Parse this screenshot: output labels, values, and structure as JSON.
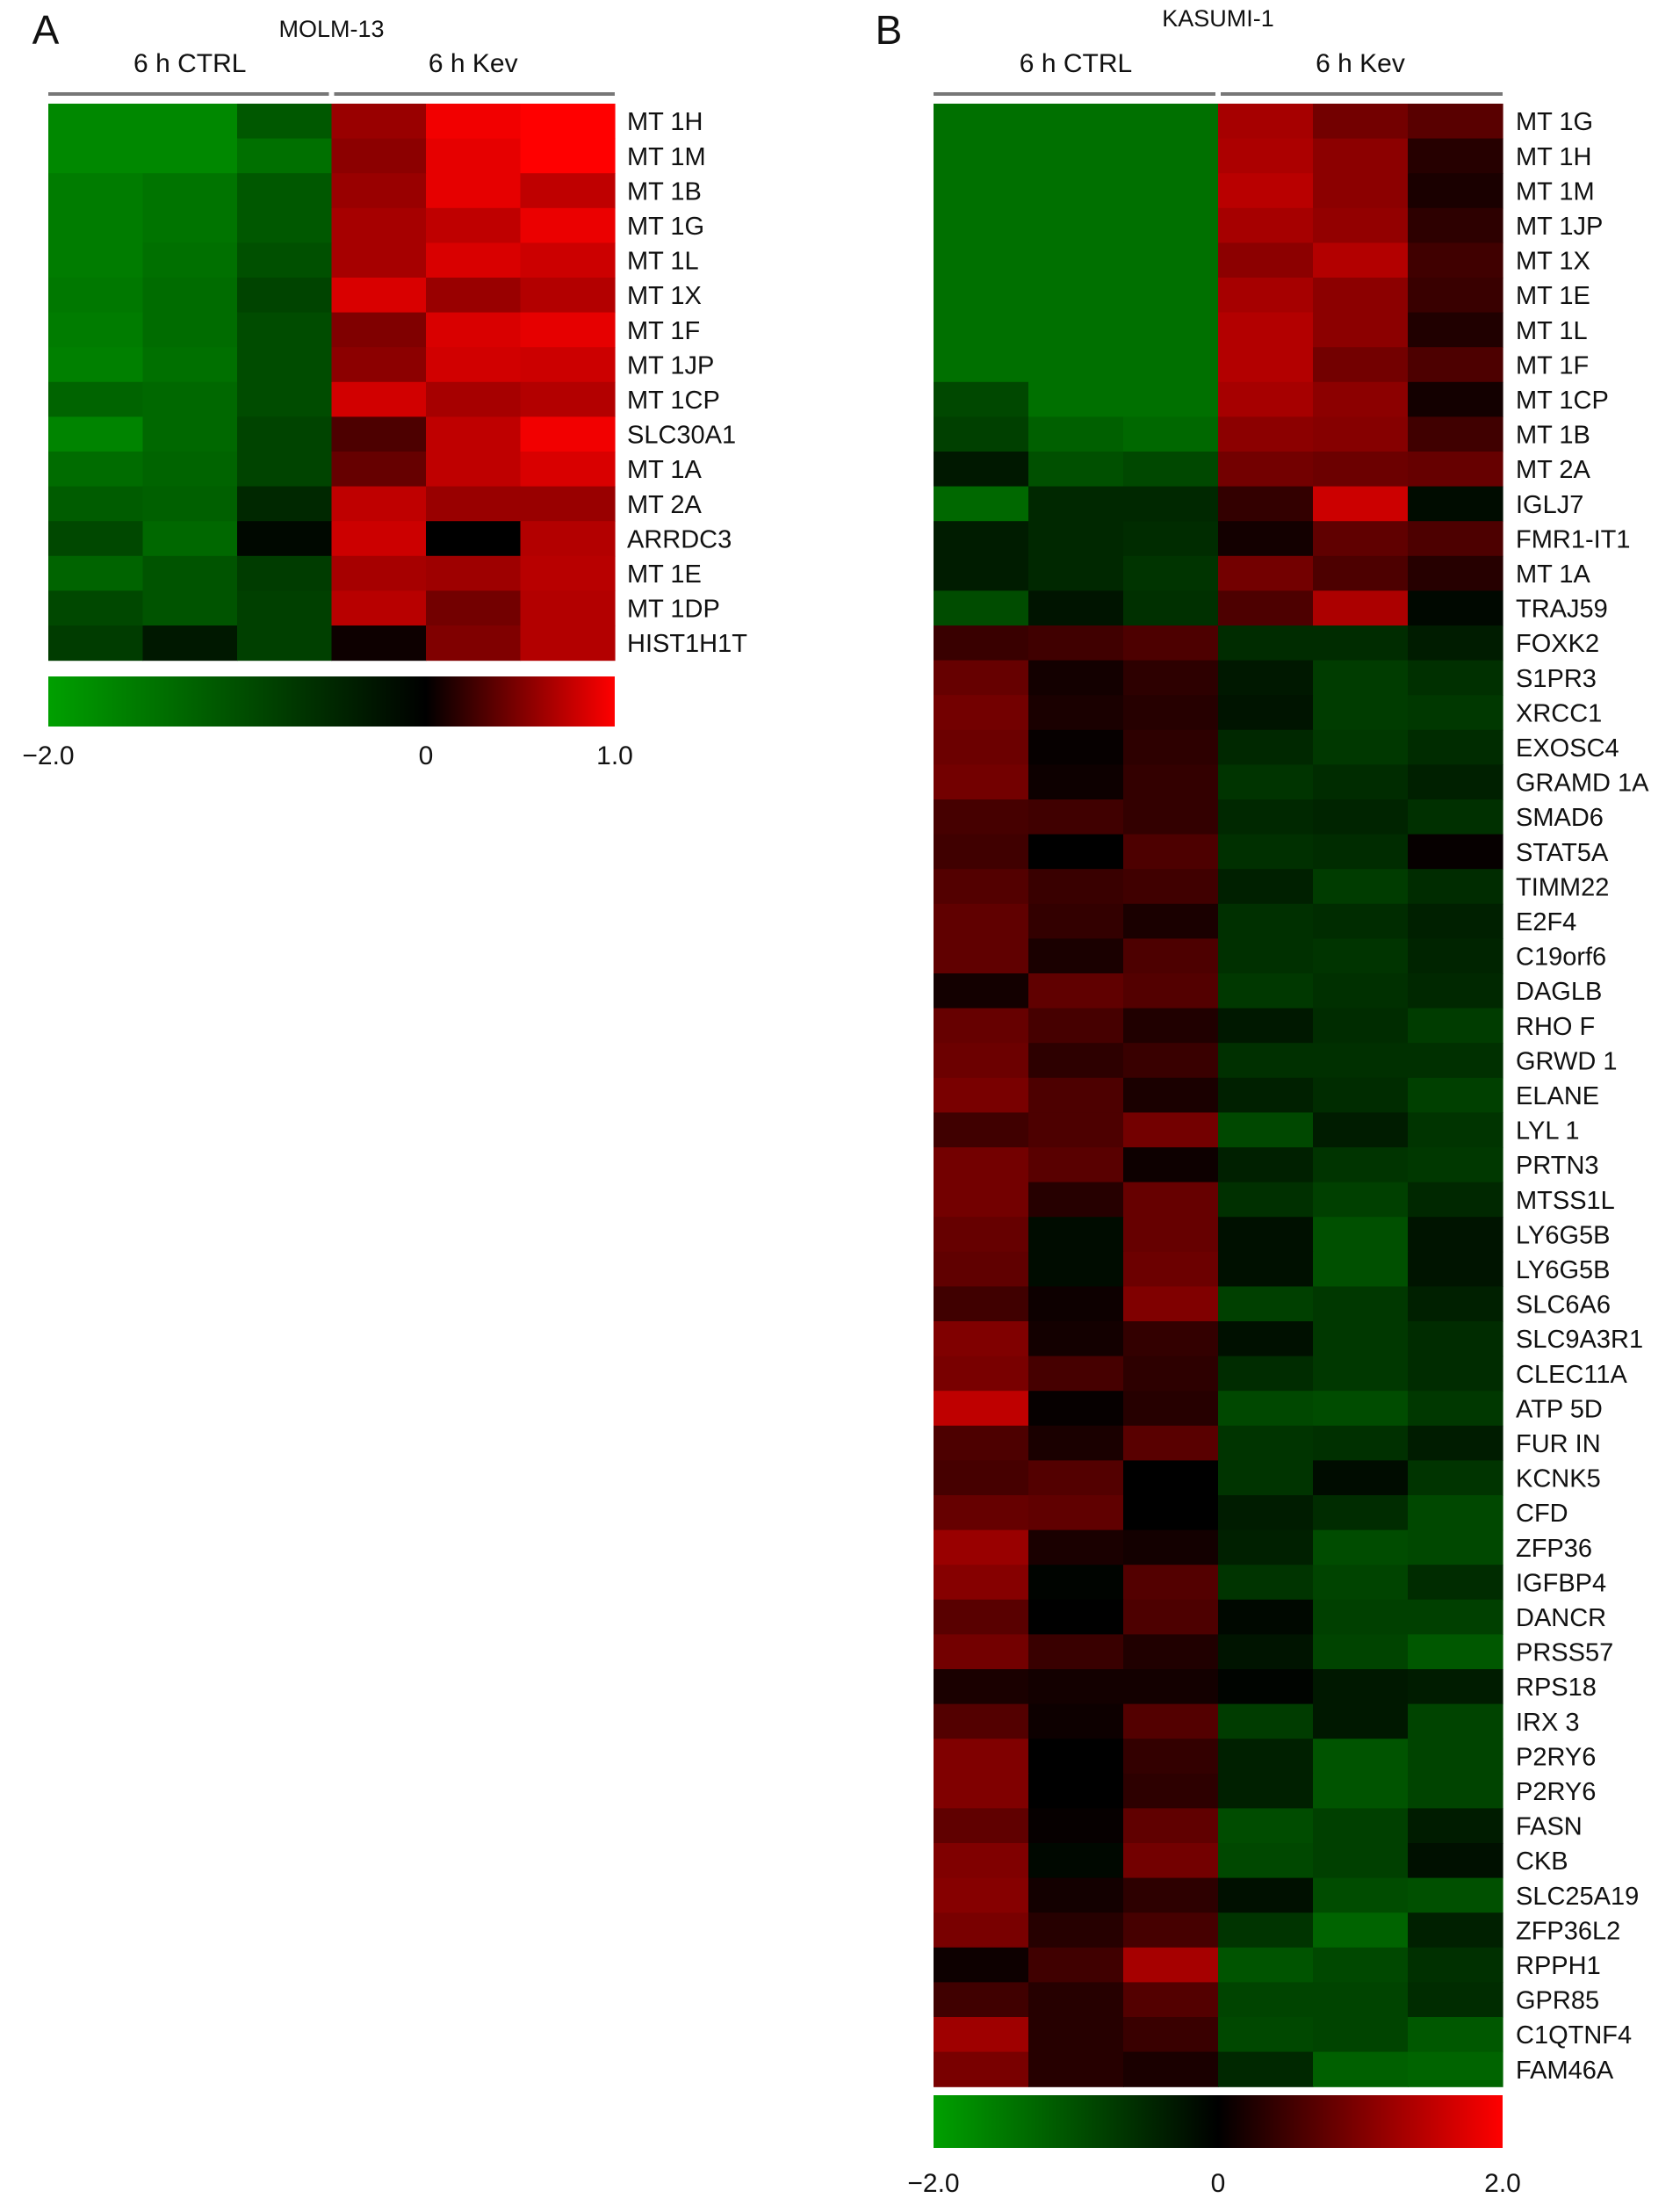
{
  "chart_data": [
    {
      "type": "heatmap",
      "panel_label": "A",
      "title": "MOLM-13",
      "groups": [
        {
          "label": "6 h CTRL",
          "columns": 3
        },
        {
          "label": "6 h Kev",
          "columns": 3
        }
      ],
      "rows": [
        "MT 1H",
        "MT 1M",
        "MT 1B",
        "MT 1G",
        "MT 1L",
        "MT 1X",
        "MT 1F",
        "MT 1JP",
        "MT 1CP",
        "SLC30A1",
        "MT 1A",
        "MT 2A",
        "ARRDC3",
        "MT 1E",
        "MT 1DP",
        "HIST1H1T"
      ],
      "values": [
        [
          -1.7,
          -1.7,
          -1.1,
          0.6,
          0.95,
          1.0
        ],
        [
          -1.7,
          -1.7,
          -1.4,
          0.55,
          0.9,
          1.0
        ],
        [
          -1.55,
          -1.45,
          -1.1,
          0.6,
          0.9,
          0.75
        ],
        [
          -1.55,
          -1.45,
          -1.1,
          0.65,
          0.75,
          0.92
        ],
        [
          -1.55,
          -1.4,
          -1.0,
          0.65,
          0.85,
          0.8
        ],
        [
          -1.5,
          -1.35,
          -0.85,
          0.85,
          0.6,
          0.7
        ],
        [
          -1.55,
          -1.35,
          -0.95,
          0.5,
          0.85,
          0.9
        ],
        [
          -1.6,
          -1.4,
          -0.95,
          0.55,
          0.82,
          0.8
        ],
        [
          -1.25,
          -1.3,
          -0.95,
          0.82,
          0.65,
          0.7
        ],
        [
          -1.65,
          -1.3,
          -0.85,
          0.3,
          0.75,
          0.95
        ],
        [
          -1.35,
          -1.25,
          -0.85,
          0.4,
          0.75,
          0.85
        ],
        [
          -1.15,
          -1.2,
          -0.5,
          0.75,
          0.6,
          0.6
        ],
        [
          -0.9,
          -1.3,
          -0.1,
          0.8,
          0.0,
          0.7
        ],
        [
          -1.25,
          -1.05,
          -0.75,
          0.65,
          0.62,
          0.72
        ],
        [
          -0.9,
          -1.05,
          -0.8,
          0.72,
          0.45,
          0.7
        ],
        [
          -0.75,
          -0.3,
          -0.8,
          0.05,
          0.5,
          0.7
        ]
      ],
      "colorbar": {
        "min": -2.0,
        "center": 0,
        "max": 1.0,
        "tick_labels": [
          "−2.0",
          "0",
          "1.0"
        ]
      },
      "colors": {
        "low": "#00a000",
        "mid": "#000000",
        "high": "#ff0000"
      }
    },
    {
      "type": "heatmap",
      "panel_label": "B",
      "title": "KASUMI-1",
      "groups": [
        {
          "label": "6 h CTRL",
          "columns": 3
        },
        {
          "label": "6 h Kev",
          "columns": 3
        }
      ],
      "rows": [
        "MT 1G",
        "MT 1H",
        "MT 1M",
        "MT 1JP",
        "MT 1X",
        "MT 1E",
        "MT 1L",
        "MT 1F",
        "MT 1CP",
        "MT 1B",
        "MT 2A",
        "IGLJ7",
        "FMR1-IT1",
        "MT 1A",
        "TRAJ59",
        "FOXK2",
        "S1PR3",
        "XRCC1",
        "EXOSC4",
        "GRAMD 1A",
        "SMAD6",
        "STAT5A",
        "TIMM22",
        "E2F4",
        "C19orf6",
        "DAGLB",
        "RHO F",
        "GRWD 1",
        "ELANE",
        "LYL 1",
        "PRTN3",
        "MTSS1L",
        "LY6G5B",
        "LY6G5B",
        "SLC6A6",
        "SLC9A3R1",
        "CLEC11A",
        "ATP 5D",
        "FUR IN",
        "KCNK5",
        "CFD",
        "ZFP36",
        "IGFBP4",
        "DANCR",
        "PRSS57",
        "RPS18",
        "IRX 3",
        "P2RY6",
        "P2RY6",
        "FASN",
        "CKB",
        "SLC25A19",
        "ZFP36L2",
        "RPPH1",
        "GPR85",
        "C1QTNF4",
        "FAM46A"
      ],
      "values": [
        [
          -1.4,
          -1.4,
          -1.4,
          1.3,
          0.9,
          0.7
        ],
        [
          -1.4,
          -1.4,
          -1.4,
          1.35,
          1.1,
          0.3
        ],
        [
          -1.4,
          -1.4,
          -1.4,
          1.45,
          1.1,
          0.2
        ],
        [
          -1.4,
          -1.4,
          -1.4,
          1.3,
          1.15,
          0.35
        ],
        [
          -1.4,
          -1.4,
          -1.4,
          1.1,
          1.4,
          0.5
        ],
        [
          -1.4,
          -1.4,
          -1.4,
          1.3,
          1.1,
          0.45
        ],
        [
          -1.4,
          -1.4,
          -1.4,
          1.4,
          1.1,
          0.25
        ],
        [
          -1.4,
          -1.4,
          -1.4,
          1.4,
          0.9,
          0.6
        ],
        [
          -0.9,
          -1.4,
          -1.4,
          1.3,
          1.1,
          0.15
        ],
        [
          -0.8,
          -1.2,
          -1.3,
          1.1,
          1.05,
          0.5
        ],
        [
          -0.3,
          -1.0,
          -0.9,
          0.9,
          0.85,
          0.8
        ],
        [
          -1.3,
          -0.5,
          -0.5,
          0.4,
          1.6,
          -0.15
        ],
        [
          -0.35,
          -0.5,
          -0.55,
          0.15,
          0.75,
          0.6
        ],
        [
          -0.35,
          -0.5,
          -0.65,
          0.9,
          0.6,
          0.3
        ],
        [
          -0.95,
          -0.25,
          -0.6,
          0.6,
          1.35,
          -0.1
        ],
        [
          0.45,
          0.5,
          0.6,
          -0.55,
          -0.55,
          -0.35
        ],
        [
          0.8,
          0.15,
          0.35,
          -0.3,
          -0.75,
          -0.6
        ],
        [
          0.9,
          0.2,
          0.3,
          -0.25,
          -0.75,
          -0.7
        ],
        [
          0.85,
          0.05,
          0.35,
          -0.5,
          -0.7,
          -0.55
        ],
        [
          0.9,
          0.1,
          0.4,
          -0.65,
          -0.55,
          -0.4
        ],
        [
          0.55,
          0.5,
          0.4,
          -0.5,
          -0.45,
          -0.6
        ],
        [
          0.5,
          0.0,
          0.6,
          -0.6,
          -0.55,
          0.05
        ],
        [
          0.65,
          0.45,
          0.5,
          -0.4,
          -0.75,
          -0.55
        ],
        [
          0.75,
          0.4,
          0.2,
          -0.6,
          -0.55,
          -0.4
        ],
        [
          0.75,
          0.2,
          0.6,
          -0.6,
          -0.65,
          -0.45
        ],
        [
          0.15,
          0.75,
          0.65,
          -0.7,
          -0.6,
          -0.5
        ],
        [
          0.8,
          0.55,
          0.25,
          -0.3,
          -0.55,
          -0.75
        ],
        [
          0.85,
          0.35,
          0.45,
          -0.6,
          -0.6,
          -0.6
        ],
        [
          0.95,
          0.6,
          0.2,
          -0.4,
          -0.55,
          -0.8
        ],
        [
          0.5,
          0.6,
          0.9,
          -0.9,
          -0.35,
          -0.65
        ],
        [
          0.9,
          0.7,
          0.1,
          -0.4,
          -0.65,
          -0.7
        ],
        [
          0.9,
          0.3,
          0.8,
          -0.6,
          -0.8,
          -0.5
        ],
        [
          0.8,
          -0.15,
          0.8,
          -0.2,
          -1.0,
          -0.25
        ],
        [
          0.75,
          -0.15,
          0.85,
          -0.2,
          -1.0,
          -0.25
        ],
        [
          0.5,
          0.1,
          1.0,
          -0.8,
          -0.7,
          -0.4
        ],
        [
          1.0,
          0.15,
          0.4,
          -0.2,
          -0.7,
          -0.55
        ],
        [
          0.95,
          0.55,
          0.35,
          -0.55,
          -0.7,
          -0.55
        ],
        [
          1.5,
          0.05,
          0.3,
          -0.9,
          -0.95,
          -0.7
        ],
        [
          0.6,
          0.2,
          0.7,
          -0.65,
          -0.6,
          -0.35
        ],
        [
          0.55,
          0.65,
          0.0,
          -0.65,
          -0.15,
          -0.65
        ],
        [
          0.8,
          0.75,
          0.0,
          -0.35,
          -0.55,
          -0.9
        ],
        [
          1.2,
          0.2,
          0.15,
          -0.4,
          -0.95,
          -0.9
        ],
        [
          1.05,
          -0.05,
          0.65,
          -0.65,
          -0.85,
          -0.55
        ],
        [
          0.7,
          0.0,
          0.6,
          -0.1,
          -0.8,
          -0.8
        ],
        [
          0.9,
          0.45,
          0.25,
          -0.25,
          -0.85,
          -1.1
        ],
        [
          0.2,
          0.15,
          0.15,
          -0.05,
          -0.3,
          -0.35
        ],
        [
          0.65,
          0.1,
          0.65,
          -0.75,
          -0.3,
          -0.85
        ],
        [
          1.0,
          0.0,
          0.4,
          -0.4,
          -1.05,
          -0.85
        ],
        [
          1.0,
          0.0,
          0.35,
          -0.4,
          -1.05,
          -0.85
        ],
        [
          0.75,
          0.05,
          0.75,
          -0.95,
          -0.8,
          -0.35
        ],
        [
          1.0,
          -0.1,
          0.9,
          -0.9,
          -0.8,
          -0.2
        ],
        [
          1.05,
          0.15,
          0.35,
          -0.2,
          -0.95,
          -1.0
        ],
        [
          0.95,
          0.3,
          0.55,
          -0.65,
          -1.25,
          -0.4
        ],
        [
          0.1,
          0.5,
          1.3,
          -1.05,
          -0.9,
          -0.6
        ],
        [
          0.5,
          0.3,
          0.65,
          -0.85,
          -0.85,
          -0.55
        ],
        [
          1.25,
          0.3,
          0.45,
          -0.9,
          -0.85,
          -1.1
        ],
        [
          0.95,
          0.3,
          0.2,
          -0.5,
          -1.2,
          -1.25
        ]
      ],
      "colorbar": {
        "min": -2.0,
        "center": 0,
        "max": 2.0,
        "tick_labels": [
          "−2.0",
          "0",
          "2.0"
        ]
      },
      "colors": {
        "low": "#00a000",
        "mid": "#000000",
        "high": "#ff0000"
      }
    }
  ]
}
